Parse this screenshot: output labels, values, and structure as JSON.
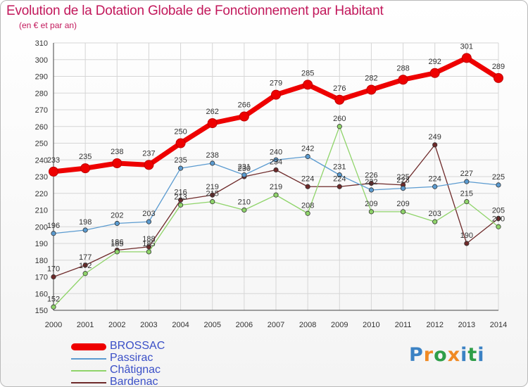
{
  "title": "Evolution de la Dotation Globale de Fonctionnement par Habitant",
  "subtitle": "(en € et par an)",
  "logo": {
    "text": "Proxiti",
    "letters": [
      "P",
      "r",
      "o",
      "x",
      "i",
      "t",
      "i"
    ],
    "colors": [
      "#3b82c4",
      "#f08a24",
      "#2e9e48",
      "#f08a24",
      "#3b82c4",
      "#2e9e48",
      "#3b82c4"
    ]
  },
  "chart_data": {
    "type": "line",
    "title": "Evolution de la Dotation Globale de Fonctionnement par Habitant",
    "subtitle": "(en € et par an)",
    "xlabel": "",
    "ylabel": "",
    "ylim": [
      150,
      310
    ],
    "yticks": [
      150,
      160,
      170,
      180,
      190,
      200,
      210,
      220,
      230,
      240,
      250,
      260,
      270,
      280,
      290,
      300,
      310
    ],
    "grid": true,
    "legend_position": "bottom-left",
    "x": [
      "2000",
      "2001",
      "2002",
      "2003",
      "2004",
      "2005",
      "2006",
      "2007",
      "2008",
      "2009",
      "2010",
      "2011",
      "2012",
      "2013",
      "2014"
    ],
    "series": [
      {
        "name": "BROSSAC",
        "color": "#ee0000",
        "values": [
          233,
          235,
          238,
          237,
          250,
          262,
          266,
          279,
          285,
          276,
          282,
          288,
          292,
          301,
          289
        ]
      },
      {
        "name": "Passirac",
        "color": "#5b9bd0",
        "values": [
          196,
          198,
          202,
          203,
          235,
          238,
          231,
          240,
          242,
          231,
          222,
          223,
          224,
          227,
          225
        ]
      },
      {
        "name": "Châtignac",
        "color": "#8fd46a",
        "values": [
          152,
          172,
          185,
          185,
          213,
          215,
          210,
          219,
          208,
          260,
          209,
          209,
          203,
          215,
          200
        ]
      },
      {
        "name": "Bardenac",
        "color": "#6e2a2a",
        "values": [
          170,
          177,
          186,
          188,
          216,
          219,
          230,
          234,
          224,
          224,
          226,
          225,
          249,
          190,
          205
        ]
      }
    ]
  }
}
